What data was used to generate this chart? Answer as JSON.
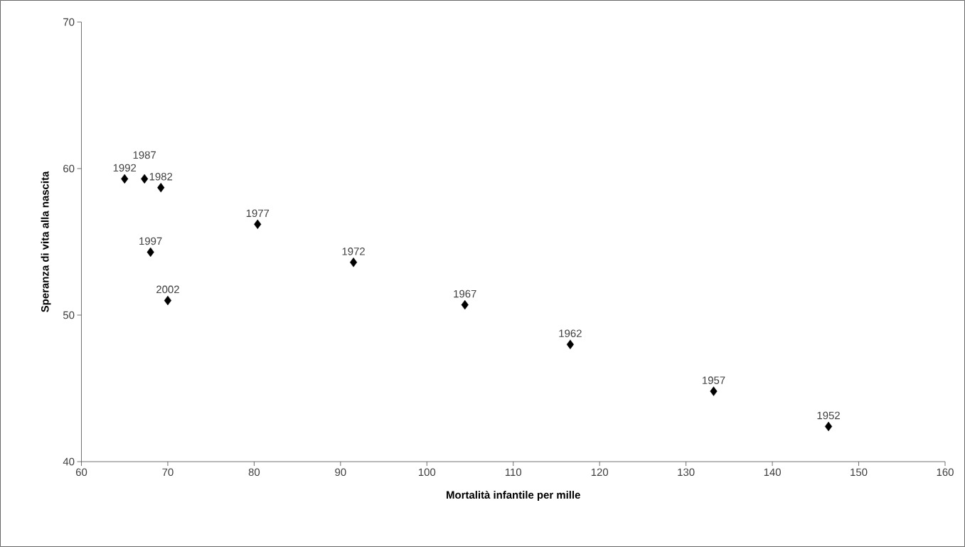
{
  "chart_data": {
    "type": "scatter",
    "xlabel": "Mortalità infantile per mille",
    "ylabel": "Speranza di vita alla nascita",
    "x": [
      146.5,
      133.2,
      116.6,
      104.4,
      91.5,
      80.4,
      69.2,
      67.3,
      65.0,
      68.0,
      70.0
    ],
    "values": [
      42.4,
      44.8,
      48.0,
      50.7,
      53.6,
      56.2,
      58.7,
      59.3,
      59.3,
      54.3,
      51.0
    ],
    "color": "#000000",
    "marker": "diamond",
    "xlim": [
      60,
      160
    ],
    "ylim": [
      40,
      70
    ],
    "xticks": [
      60,
      70,
      80,
      90,
      100,
      110,
      120,
      130,
      140,
      150,
      160
    ],
    "yticks": [
      40,
      50,
      60,
      70
    ],
    "annotations": [
      {
        "text": "1952",
        "x": 146.5,
        "y": 42.4
      },
      {
        "text": "1957",
        "x": 133.2,
        "y": 44.8
      },
      {
        "text": "1962",
        "x": 116.6,
        "y": 48.0
      },
      {
        "text": "1967",
        "x": 104.4,
        "y": 50.7
      },
      {
        "text": "1972",
        "x": 91.5,
        "y": 53.6
      },
      {
        "text": "1977",
        "x": 80.4,
        "y": 56.2
      },
      {
        "text": "1982",
        "x": 69.2,
        "y": 58.7
      },
      {
        "text": "1987",
        "x": 67.3,
        "y": 59.3
      },
      {
        "text": "1992",
        "x": 65.0,
        "y": 59.3
      },
      {
        "text": "1997",
        "x": 68.0,
        "y": 54.3
      },
      {
        "text": "2002",
        "x": 70.0,
        "y": 51.0
      }
    ]
  }
}
